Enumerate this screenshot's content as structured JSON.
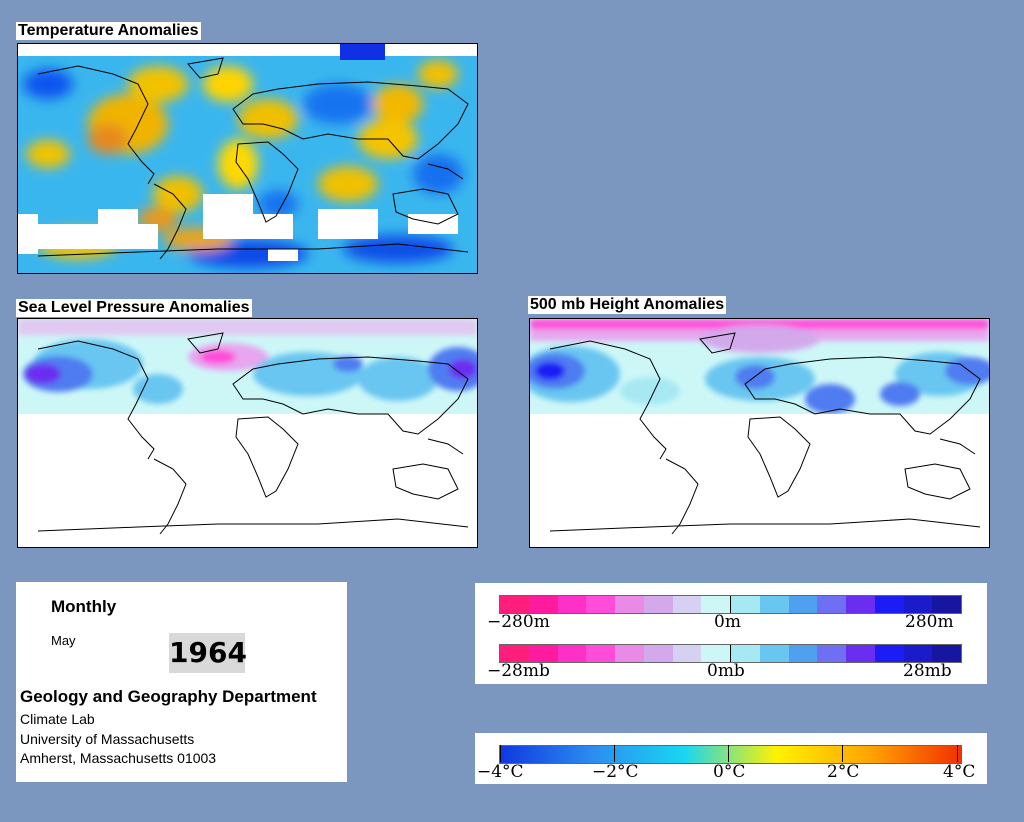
{
  "panels": {
    "temperature": {
      "title": "Temperature Anomalies"
    },
    "slp": {
      "title": "Sea Level Pressure Anomalies"
    },
    "height": {
      "title": "500 mb Height Anomalies"
    }
  },
  "info": {
    "frequency": "Monthly",
    "month": "May",
    "year": "1964",
    "department": "Geology and Geography Department",
    "lab": "Climate Lab",
    "university": "University of Massachusetts",
    "address": "Amherst, Massachusetts 01003"
  },
  "legends": {
    "height": {
      "labels": [
        "−280m",
        "0m",
        "280m"
      ],
      "colors": [
        "#ff1f7a",
        "#ff1aa0",
        "#ff30c8",
        "#ff4cd9",
        "#e98be6",
        "#d3a9ec",
        "#d6d0f2",
        "#cdf7f7",
        "#a6e9f3",
        "#69c6f1",
        "#4fa1f0",
        "#6e6ff2",
        "#6a2ef0",
        "#1c1cf4",
        "#1b1bcc",
        "#1616a0"
      ]
    },
    "pressure": {
      "labels": [
        "−28mb",
        "0mb",
        "28mb"
      ],
      "colors": [
        "#ff1f7a",
        "#ff1aa0",
        "#ff30c8",
        "#ff4cd9",
        "#e98be6",
        "#d3a9ec",
        "#d6d0f2",
        "#cdf7f7",
        "#a6e9f3",
        "#69c6f1",
        "#4fa1f0",
        "#6e6ff2",
        "#6a2ef0",
        "#1c1cf4",
        "#1b1bcc",
        "#1616a0"
      ]
    },
    "temperature": {
      "labels": [
        "−4°C",
        "−2°C",
        "0°C",
        "2°C",
        "4°C"
      ],
      "gradient_stops": [
        "#1038e0",
        "#2c8cf0",
        "#19d6f2",
        "#fff200",
        "#ffa500",
        "#f23000"
      ]
    }
  },
  "colors": {
    "background": "#7b97bf",
    "positive_height": "#5577ee",
    "negative_height": "#ff44cc"
  }
}
